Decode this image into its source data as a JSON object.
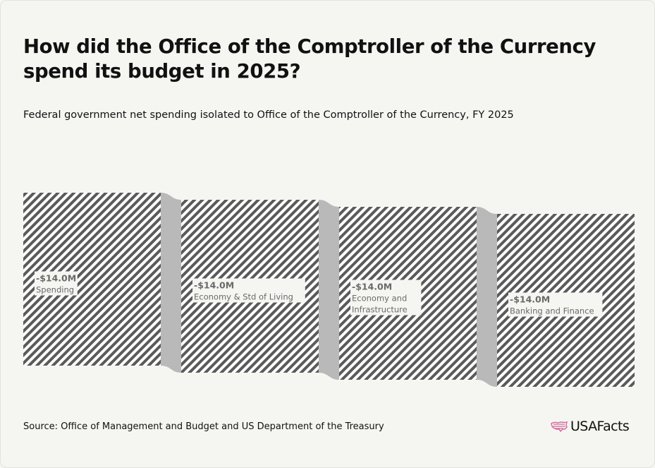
{
  "title": "How did the Office of the Comptroller of the Currency spend its budget in 2025?",
  "subtitle": "Federal government net spending isolated to Office of the Comptroller of the Currency, FY 2025",
  "source": "Source: Office of Management and Budget and US Department of the Treasury",
  "brand": "USAFacts",
  "icons": {
    "logo": "us-flag-map-icon"
  },
  "colors": {
    "background": "#f5f5f2",
    "hatch": "#5a5a5a",
    "link": "#b9b9b9",
    "brand_pink": "#d6689a"
  },
  "chart_data": {
    "type": "sankey",
    "nodes": [
      {
        "value": "-$14.0M",
        "label_lines": [
          "Spending"
        ]
      },
      {
        "value": "-$14.0M",
        "label_lines": [
          "Economy & Std of Living"
        ]
      },
      {
        "value": "-$14.0M",
        "label_lines": [
          "Economy and",
          "Infrastructure"
        ]
      },
      {
        "value": "-$14.0M",
        "label_lines": [
          "Banking and Finance"
        ]
      }
    ],
    "links": [
      {
        "from": 0,
        "to": 1,
        "value": -14.0
      },
      {
        "from": 1,
        "to": 2,
        "value": -14.0
      },
      {
        "from": 2,
        "to": 3,
        "value": -14.0
      }
    ]
  }
}
